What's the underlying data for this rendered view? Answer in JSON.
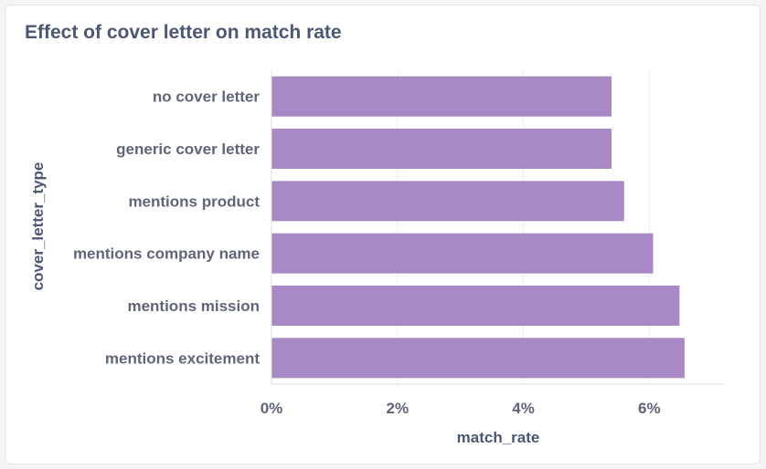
{
  "card": {
    "title": "Effect of cover letter on match rate"
  },
  "chart_data": {
    "type": "bar",
    "orientation": "horizontal",
    "title": "Effect of cover letter on match rate",
    "xlabel": "match_rate",
    "ylabel": "cover_letter_type",
    "categories": [
      "no cover letter",
      "generic cover letter",
      "mentions product",
      "mentions company name",
      "mentions mission",
      "mentions excitement"
    ],
    "values": [
      0.054,
      0.054,
      0.056,
      0.0606,
      0.0648,
      0.0656
    ],
    "xlim": [
      0,
      0.072
    ],
    "xticks": [
      0,
      0.02,
      0.04,
      0.06
    ],
    "xtick_labels": [
      "0%",
      "2%",
      "4%",
      "6%"
    ],
    "grid": "vertical",
    "bar_color": "#a989c5",
    "grid_color": "#ececf0",
    "axis_color": "#dcdde3"
  }
}
